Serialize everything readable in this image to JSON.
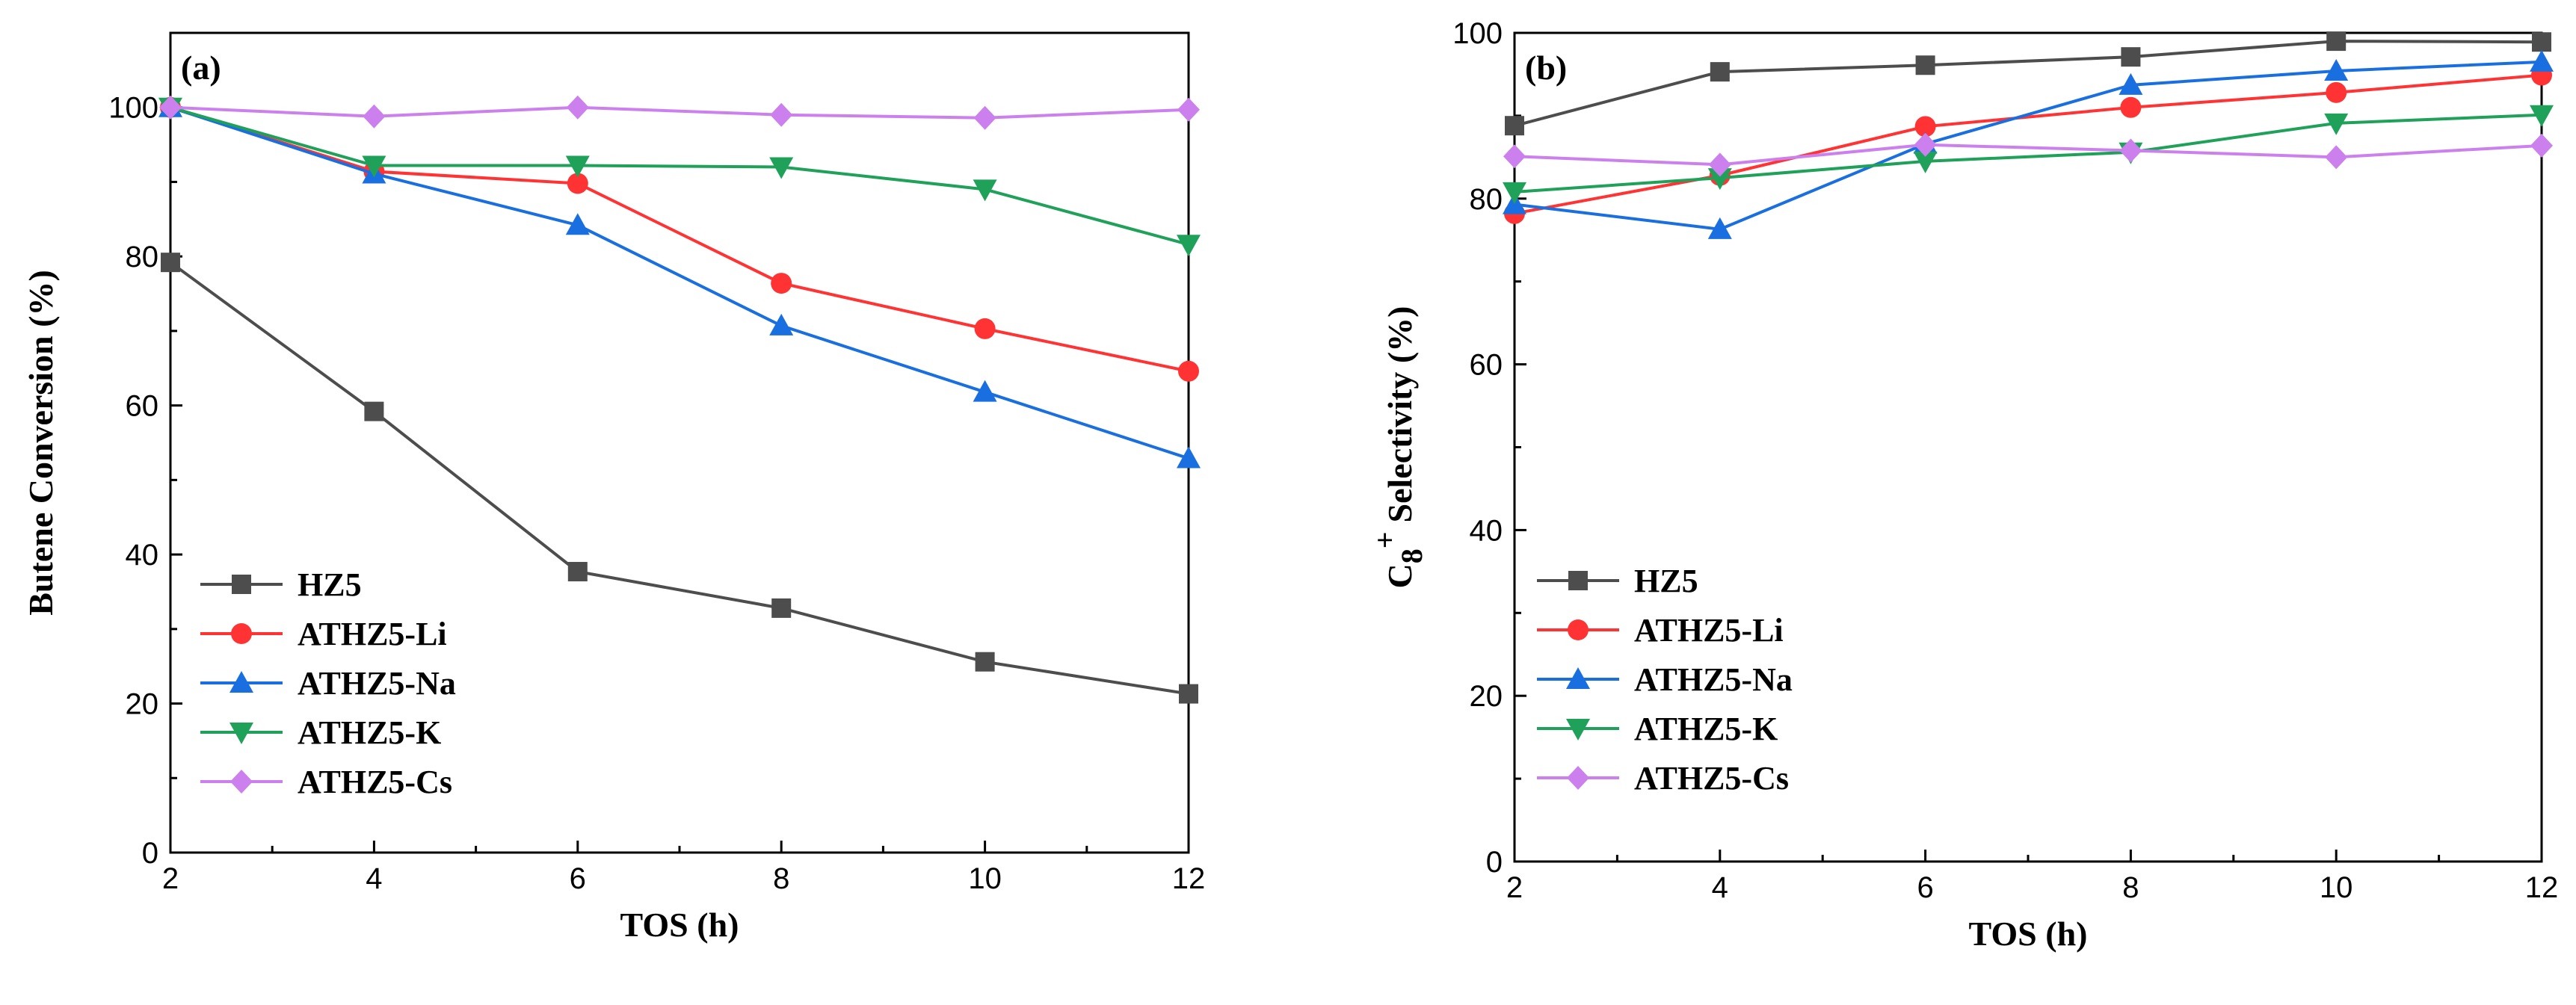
{
  "chart_data": [
    {
      "type": "line",
      "panel_label": "(a)",
      "xlabel": "TOS (h)",
      "ylabel": "Butene Conversion (%)",
      "x": [
        2,
        4,
        6,
        8,
        10,
        12
      ],
      "xlim": [
        2,
        12
      ],
      "ylim": [
        0,
        110
      ],
      "xticks": [
        2,
        4,
        6,
        8,
        10,
        12
      ],
      "yticks": [
        0,
        20,
        40,
        60,
        80,
        100
      ],
      "legend_position": "bottom-left",
      "series": [
        {
          "name": "HZ5",
          "color": "#4d4d4d",
          "marker": "square",
          "values": [
            79.2,
            59.2,
            37.7,
            32.8,
            25.6,
            21.3
          ]
        },
        {
          "name": "ATHZ5-Li",
          "color": "#ff3333",
          "marker": "circle",
          "values": [
            100.0,
            91.4,
            89.8,
            76.4,
            70.3,
            64.6
          ]
        },
        {
          "name": "ATHZ5-Na",
          "color": "#1a6fe0",
          "marker": "triangle-up",
          "values": [
            100.0,
            91.1,
            84.2,
            70.7,
            61.8,
            52.9
          ]
        },
        {
          "name": "ATHZ5-K",
          "color": "#1fa15a",
          "marker": "triangle-down",
          "values": [
            100.0,
            92.2,
            92.2,
            92.0,
            89.0,
            81.6
          ]
        },
        {
          "name": "ATHZ5-Cs",
          "color": "#cc80ee",
          "marker": "diamond",
          "values": [
            100.0,
            98.8,
            100.0,
            99.0,
            98.6,
            99.7
          ]
        }
      ]
    },
    {
      "type": "line",
      "panel_label": "(b)",
      "xlabel": "TOS (h)",
      "ylabel_main": "C",
      "ylabel_sub": "8",
      "ylabel_sup": "+",
      "ylabel_rest": "Selectivity (%)",
      "x": [
        2,
        4,
        6,
        8,
        10,
        12
      ],
      "xlim": [
        2,
        12
      ],
      "ylim": [
        0,
        100
      ],
      "xticks": [
        2,
        4,
        6,
        8,
        10,
        12
      ],
      "yticks": [
        0,
        20,
        40,
        60,
        80,
        100
      ],
      "legend_position": "bottom-left",
      "series": [
        {
          "name": "HZ5",
          "color": "#4d4d4d",
          "marker": "square",
          "values": [
            88.8,
            95.3,
            96.1,
            97.1,
            99.0,
            98.9
          ]
        },
        {
          "name": "ATHZ5-Li",
          "color": "#ff3333",
          "marker": "circle",
          "values": [
            78.2,
            82.8,
            88.7,
            91.0,
            92.8,
            94.9
          ]
        },
        {
          "name": "ATHZ5-Na",
          "color": "#1a6fe0",
          "marker": "triangle-up",
          "values": [
            79.3,
            76.3,
            86.6,
            93.7,
            95.4,
            96.5
          ]
        },
        {
          "name": "ATHZ5-K",
          "color": "#1fa15a",
          "marker": "triangle-down",
          "values": [
            80.8,
            82.5,
            84.5,
            85.6,
            89.1,
            90.1
          ]
        },
        {
          "name": "ATHZ5-Cs",
          "color": "#cc80ee",
          "marker": "diamond",
          "values": [
            85.1,
            84.1,
            86.5,
            85.8,
            85.0,
            86.4
          ]
        }
      ]
    }
  ]
}
